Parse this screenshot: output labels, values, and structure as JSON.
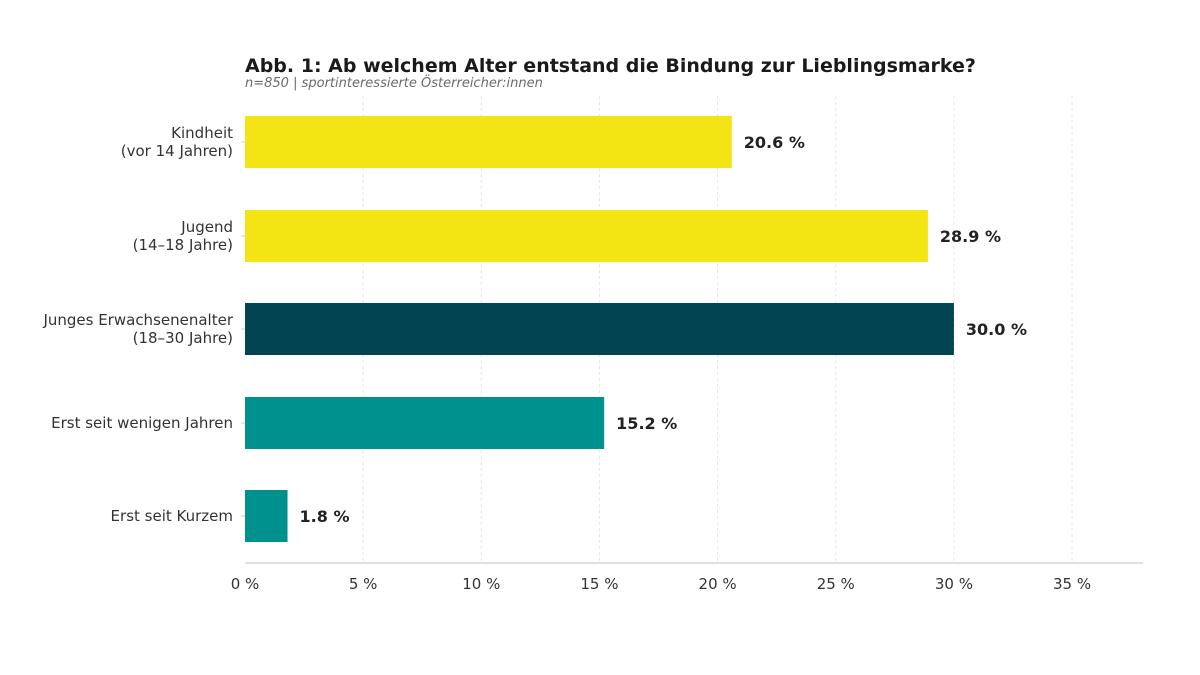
{
  "chart_data": {
    "type": "bar",
    "orientation": "horizontal",
    "title": "Abb. 1: Ab welchem Alter entstand die Bindung zur Lieblingsmarke?",
    "subtitle": "n=850 | sportinteressierte Österreicher:innen",
    "categories": [
      [
        "Kindheit",
        "(vor 14 Jahren)"
      ],
      [
        "Jugend",
        "(14–18 Jahre)"
      ],
      [
        "Junges Erwachsenenalter",
        "(18–30 Jahre)"
      ],
      [
        "Erst seit wenigen Jahren"
      ],
      [
        "Erst seit Kurzem"
      ]
    ],
    "values": [
      20.6,
      28.9,
      30.0,
      15.2,
      1.8
    ],
    "value_labels": [
      "20.6 %",
      "28.9 %",
      "30.0 %",
      "15.2 %",
      "1.8 %"
    ],
    "bar_colors": [
      "#F3E514",
      "#F3E514",
      "#024452",
      "#00918F",
      "#00918F"
    ],
    "xlabel": "",
    "ylabel": "",
    "xlim": [
      0,
      38
    ],
    "xticks": [
      0,
      5,
      10,
      15,
      20,
      25,
      30,
      35
    ],
    "xtick_labels": [
      "0 %",
      "5 %",
      "10 %",
      "15 %",
      "20 %",
      "25 %",
      "30 %",
      "35 %"
    ],
    "grid": "vertical dashed",
    "legend": "none"
  }
}
